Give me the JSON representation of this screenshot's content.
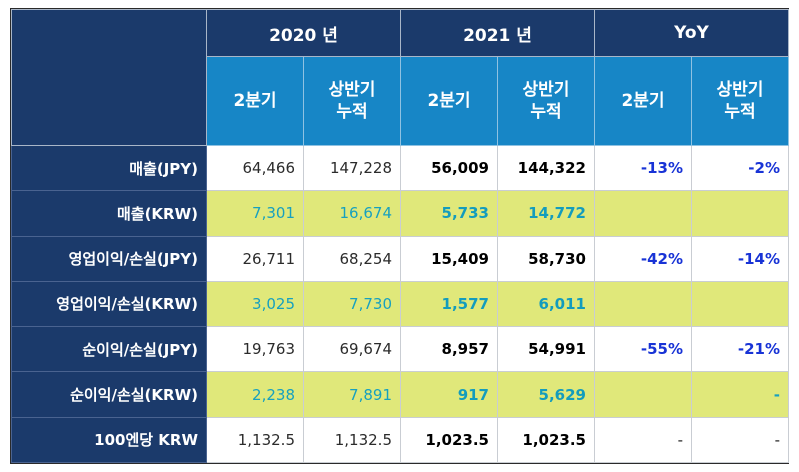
{
  "header": {
    "groups": [
      "2020 년",
      "2021 년",
      "YoY"
    ],
    "sub_q2": "2분기",
    "sub_h1_line1": "상반기",
    "sub_h1_line2": "누적"
  },
  "rows": [
    {
      "label": "매출(JPY)",
      "v2020_q2": "64,466",
      "v2020_h1": "147,228",
      "v2021_q2": "56,009",
      "v2021_h1": "144,322",
      "yoy_q2": "-13%",
      "yoy_h1": "-2%"
    },
    {
      "label": "매출(KRW)",
      "v2020_q2": "7,301",
      "v2020_h1": "16,674",
      "v2021_q2": "5,733",
      "v2021_h1": "14,772",
      "yoy_q2": "",
      "yoy_h1": ""
    },
    {
      "label": "영업이익/손실(JPY)",
      "v2020_q2": "26,711",
      "v2020_h1": "68,254",
      "v2021_q2": "15,409",
      "v2021_h1": "58,730",
      "yoy_q2": "-42%",
      "yoy_h1": "-14%"
    },
    {
      "label": "영업이익/손실(KRW)",
      "v2020_q2": "3,025",
      "v2020_h1": "7,730",
      "v2021_q2": "1,577",
      "v2021_h1": "6,011",
      "yoy_q2": "",
      "yoy_h1": ""
    },
    {
      "label": "순이익/손실(JPY)",
      "v2020_q2": "19,763",
      "v2020_h1": "69,674",
      "v2021_q2": "8,957",
      "v2021_h1": "54,991",
      "yoy_q2": "-55%",
      "yoy_h1": "-21%"
    },
    {
      "label": "순이익/손실(KRW)",
      "v2020_q2": "2,238",
      "v2020_h1": "7,891",
      "v2021_q2": "917",
      "v2021_h1": "5,629",
      "yoy_q2": "",
      "yoy_h1": "-"
    },
    {
      "label": "100엔당 KRW",
      "v2020_q2": "1,132.5",
      "v2020_h1": "1,132.5",
      "v2021_q2": "1,023.5",
      "v2021_h1": "1,023.5",
      "yoy_q2": "-",
      "yoy_h1": "-"
    }
  ]
}
